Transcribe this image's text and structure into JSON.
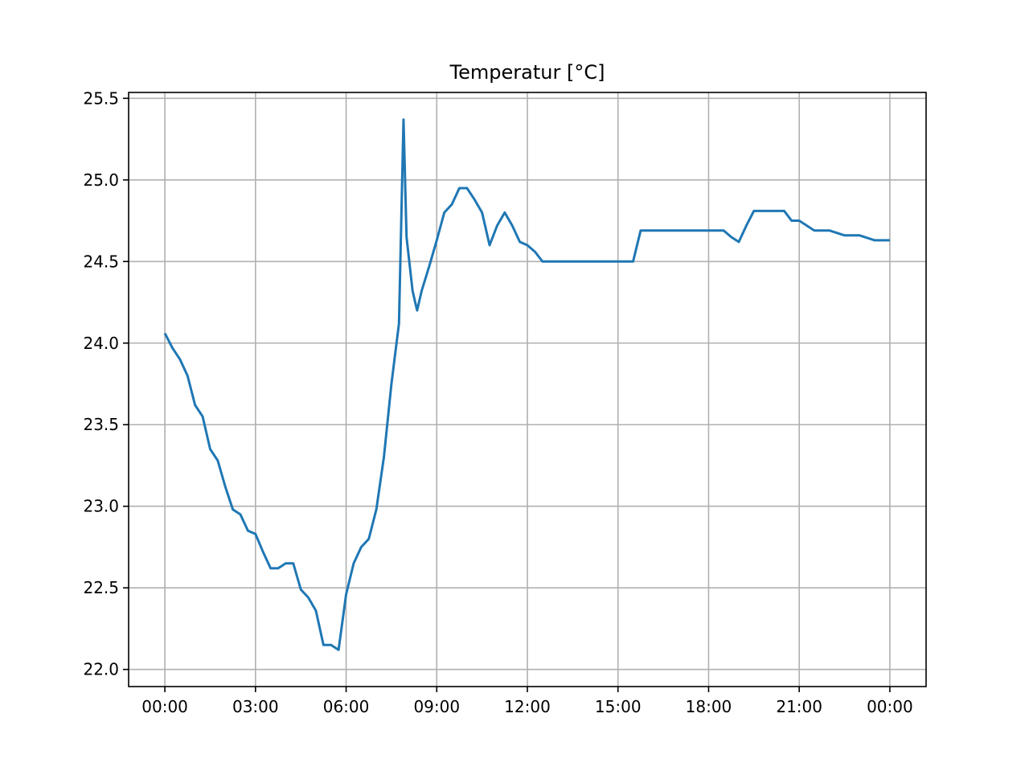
{
  "chart_data": {
    "type": "line",
    "title": "Temperatur [°C]",
    "x": [
      0,
      0.25,
      0.5,
      0.75,
      1.0,
      1.25,
      1.5,
      1.75,
      2.0,
      2.25,
      2.5,
      2.75,
      3.0,
      3.25,
      3.5,
      3.75,
      4.0,
      4.25,
      4.5,
      4.75,
      5.0,
      5.25,
      5.5,
      5.75,
      6.0,
      6.25,
      6.5,
      6.75,
      7.0,
      7.25,
      7.5,
      7.75,
      7.9,
      8.0,
      8.2,
      8.35,
      8.5,
      8.75,
      9.0,
      9.25,
      9.5,
      9.75,
      10.0,
      10.25,
      10.5,
      10.75,
      11.0,
      11.25,
      11.5,
      11.75,
      12.0,
      12.25,
      12.5,
      13.0,
      14.0,
      15.0,
      15.5,
      15.75,
      16.5,
      17.0,
      18.0,
      18.5,
      18.75,
      19.0,
      19.25,
      19.5,
      20.0,
      20.5,
      20.75,
      21.0,
      21.5,
      22.0,
      22.5,
      23.0,
      23.5,
      24.0
    ],
    "series": [
      {
        "name": "Temperatur",
        "color": "#1f77b4",
        "values": [
          24.06,
          23.97,
          23.9,
          23.8,
          23.62,
          23.55,
          23.35,
          23.28,
          23.12,
          22.98,
          22.95,
          22.85,
          22.83,
          22.72,
          22.62,
          22.62,
          22.65,
          22.65,
          22.49,
          22.44,
          22.36,
          22.15,
          22.15,
          22.12,
          22.46,
          22.65,
          22.75,
          22.8,
          22.98,
          23.3,
          23.75,
          24.12,
          25.37,
          24.65,
          24.32,
          24.2,
          24.32,
          24.47,
          24.63,
          24.8,
          24.85,
          24.95,
          24.95,
          24.88,
          24.8,
          24.6,
          24.72,
          24.8,
          24.72,
          24.62,
          24.6,
          24.56,
          24.5,
          24.5,
          24.5,
          24.5,
          24.5,
          24.69,
          24.69,
          24.69,
          24.69,
          24.69,
          24.65,
          24.62,
          24.72,
          24.81,
          24.81,
          24.81,
          24.75,
          24.75,
          24.69,
          24.69,
          24.66,
          24.66,
          24.63,
          24.63
        ]
      }
    ],
    "xlim": [
      -1.2,
      25.2
    ],
    "ylim": [
      21.895,
      25.536
    ],
    "xticks": [
      {
        "value": 0,
        "label": "00:00"
      },
      {
        "value": 3,
        "label": "03:00"
      },
      {
        "value": 6,
        "label": "06:00"
      },
      {
        "value": 9,
        "label": "09:00"
      },
      {
        "value": 12,
        "label": "12:00"
      },
      {
        "value": 15,
        "label": "15:00"
      },
      {
        "value": 18,
        "label": "18:00"
      },
      {
        "value": 21,
        "label": "21:00"
      },
      {
        "value": 24,
        "label": "00:00"
      }
    ],
    "yticks": [
      {
        "value": 22,
        "label": "22.0"
      },
      22.5,
      {
        "value": 23,
        "label": "23.0"
      },
      23.5,
      {
        "value": 24,
        "label": "24.0"
      },
      24.5,
      {
        "value": 25,
        "label": "25.0"
      },
      25.5
    ],
    "grid": true
  }
}
